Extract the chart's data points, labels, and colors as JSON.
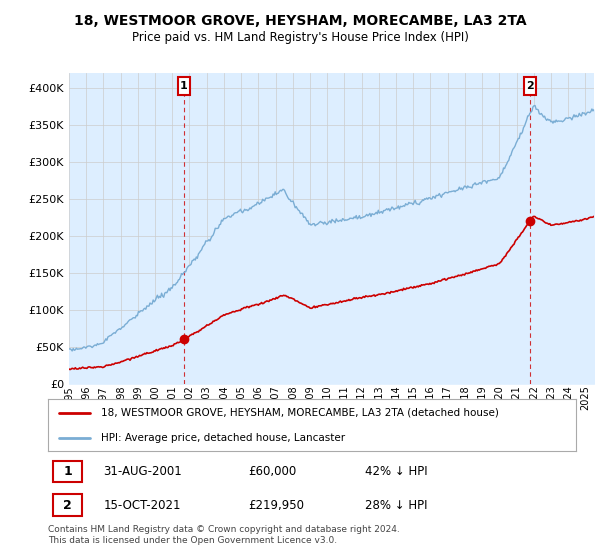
{
  "title": "18, WESTMOOR GROVE, HEYSHAM, MORECAMBE, LA3 2TA",
  "subtitle": "Price paid vs. HM Land Registry's House Price Index (HPI)",
  "hpi_label": "HPI: Average price, detached house, Lancaster",
  "property_label": "18, WESTMOOR GROVE, HEYSHAM, MORECAMBE, LA3 2TA (detached house)",
  "hpi_color": "#7aadd4",
  "hpi_fill": "#ddeeff",
  "property_color": "#cc0000",
  "sale1": {
    "date_label": "31-AUG-2001",
    "price": 60000,
    "note": "42% ↓ HPI",
    "year": 2001.67,
    "num": "1"
  },
  "sale2": {
    "date_label": "15-OCT-2021",
    "price": 219950,
    "note": "28% ↓ HPI",
    "year": 2021.79,
    "num": "2"
  },
  "ylim": [
    0,
    420000
  ],
  "xlim": [
    1995,
    2025.5
  ],
  "yticks": [
    0,
    50000,
    100000,
    150000,
    200000,
    250000,
    300000,
    350000,
    400000
  ],
  "xlabel_years": [
    1995,
    1996,
    1997,
    1998,
    1999,
    2000,
    2001,
    2002,
    2003,
    2004,
    2005,
    2006,
    2007,
    2008,
    2009,
    2010,
    2011,
    2012,
    2013,
    2014,
    2015,
    2016,
    2017,
    2018,
    2019,
    2020,
    2021,
    2022,
    2023,
    2024,
    2025
  ],
  "footer": "Contains HM Land Registry data © Crown copyright and database right 2024.\nThis data is licensed under the Open Government Licence v3.0.",
  "bg_color": "#ffffff",
  "grid_color": "#cccccc"
}
